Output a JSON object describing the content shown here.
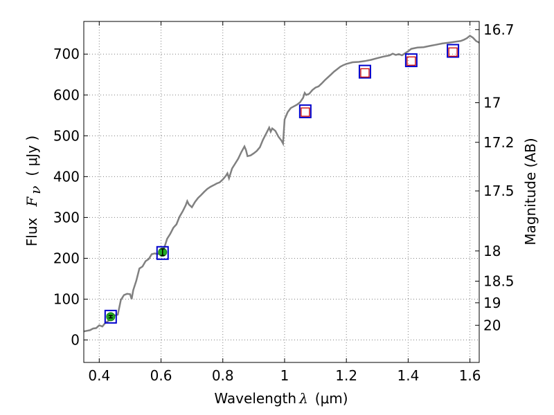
{
  "chart_data": {
    "type": "scatter",
    "xlabel": "Wavelength",
    "xlabel_symbol": "λ",
    "xlabel_unit": "(μm)",
    "ylabel": "Flux",
    "ylabel_symbol": "F",
    "ylabel_subscript": "ν",
    "ylabel_unit": "( μJy )",
    "y2label": "Magnitude (AB)",
    "xlim": [
      0.35,
      1.63
    ],
    "ylim": [
      -55,
      780
    ],
    "grid": true,
    "x_ticks": [
      0.4,
      0.6,
      0.8,
      1.0,
      1.2,
      1.4,
      1.6
    ],
    "x_tick_labels": [
      "0.4",
      "0.6",
      "0.8",
      "1",
      "1.2",
      "1.4",
      "1.6"
    ],
    "y_ticks": [
      0,
      100,
      200,
      300,
      400,
      500,
      600,
      700
    ],
    "y_tick_labels": [
      "0",
      "100",
      "200",
      "300",
      "400",
      "500",
      "600",
      "700"
    ],
    "y2_ticks": [
      {
        "label": "16.7",
        "flux": 760
      },
      {
        "label": "17",
        "flux": 581
      },
      {
        "label": "17.2",
        "flux": 484
      },
      {
        "label": "17.5",
        "flux": 365
      },
      {
        "label": "18",
        "flux": 218
      },
      {
        "label": "18.5",
        "flux": 144
      },
      {
        "label": "19",
        "flux": 91
      },
      {
        "label": "20",
        "flux": 36
      }
    ],
    "series": [
      {
        "type": "line",
        "color": "#808080",
        "points": [
          [
            0.35,
            21
          ],
          [
            0.37,
            24
          ],
          [
            0.38,
            28
          ],
          [
            0.39,
            29
          ],
          [
            0.4,
            36
          ],
          [
            0.41,
            33
          ],
          [
            0.42,
            42
          ],
          [
            0.43,
            47
          ],
          [
            0.44,
            55
          ],
          [
            0.45,
            60
          ],
          [
            0.46,
            62
          ],
          [
            0.47,
            98
          ],
          [
            0.48,
            110
          ],
          [
            0.49,
            113
          ],
          [
            0.5,
            112
          ],
          [
            0.505,
            100
          ],
          [
            0.51,
            122
          ],
          [
            0.52,
            145
          ],
          [
            0.53,
            175
          ],
          [
            0.54,
            180
          ],
          [
            0.55,
            193
          ],
          [
            0.56,
            198
          ],
          [
            0.57,
            210
          ],
          [
            0.58,
            212
          ],
          [
            0.59,
            210
          ],
          [
            0.6,
            218
          ],
          [
            0.61,
            225
          ],
          [
            0.62,
            248
          ],
          [
            0.63,
            260
          ],
          [
            0.64,
            275
          ],
          [
            0.65,
            283
          ],
          [
            0.66,
            302
          ],
          [
            0.67,
            315
          ],
          [
            0.68,
            330
          ],
          [
            0.685,
            340
          ],
          [
            0.69,
            332
          ],
          [
            0.7,
            325
          ],
          [
            0.71,
            338
          ],
          [
            0.72,
            348
          ],
          [
            0.73,
            355
          ],
          [
            0.74,
            363
          ],
          [
            0.75,
            370
          ],
          [
            0.76,
            375
          ],
          [
            0.77,
            379
          ],
          [
            0.78,
            383
          ],
          [
            0.79,
            386
          ],
          [
            0.8,
            393
          ],
          [
            0.81,
            402
          ],
          [
            0.815,
            408
          ],
          [
            0.82,
            396
          ],
          [
            0.83,
            420
          ],
          [
            0.84,
            432
          ],
          [
            0.85,
            444
          ],
          [
            0.86,
            460
          ],
          [
            0.87,
            474
          ],
          [
            0.875,
            465
          ],
          [
            0.88,
            450
          ],
          [
            0.89,
            452
          ],
          [
            0.9,
            457
          ],
          [
            0.91,
            463
          ],
          [
            0.92,
            472
          ],
          [
            0.93,
            490
          ],
          [
            0.94,
            505
          ],
          [
            0.95,
            520
          ],
          [
            0.955,
            510
          ],
          [
            0.96,
            518
          ],
          [
            0.97,
            512
          ],
          [
            0.98,
            498
          ],
          [
            0.99,
            488
          ],
          [
            0.995,
            481
          ],
          [
            1.0,
            540
          ],
          [
            1.01,
            558
          ],
          [
            1.02,
            568
          ],
          [
            1.03,
            572
          ],
          [
            1.04,
            576
          ],
          [
            1.05,
            582
          ],
          [
            1.06,
            593
          ],
          [
            1.065,
            605
          ],
          [
            1.07,
            600
          ],
          [
            1.08,
            603
          ],
          [
            1.09,
            612
          ],
          [
            1.1,
            618
          ],
          [
            1.11,
            621
          ],
          [
            1.12,
            628
          ],
          [
            1.13,
            636
          ],
          [
            1.14,
            643
          ],
          [
            1.15,
            650
          ],
          [
            1.16,
            657
          ],
          [
            1.17,
            663
          ],
          [
            1.18,
            669
          ],
          [
            1.19,
            673
          ],
          [
            1.2,
            676
          ],
          [
            1.22,
            680
          ],
          [
            1.24,
            681
          ],
          [
            1.26,
            683
          ],
          [
            1.28,
            686
          ],
          [
            1.3,
            690
          ],
          [
            1.32,
            694
          ],
          [
            1.34,
            697
          ],
          [
            1.35,
            701
          ],
          [
            1.36,
            698
          ],
          [
            1.37,
            700
          ],
          [
            1.38,
            697
          ],
          [
            1.39,
            702
          ],
          [
            1.4,
            707
          ],
          [
            1.41,
            713
          ],
          [
            1.43,
            716
          ],
          [
            1.45,
            717
          ],
          [
            1.47,
            720
          ],
          [
            1.49,
            723
          ],
          [
            1.51,
            726
          ],
          [
            1.53,
            728
          ],
          [
            1.55,
            730
          ],
          [
            1.57,
            732
          ],
          [
            1.58,
            735
          ],
          [
            1.59,
            739
          ],
          [
            1.6,
            745
          ],
          [
            1.61,
            740
          ],
          [
            1.62,
            732
          ],
          [
            1.63,
            728
          ]
        ]
      },
      {
        "type": "model_boxes",
        "color": "#0000cc",
        "points": [
          [
            0.437,
            57
          ],
          [
            0.605,
            213
          ],
          [
            1.067,
            560
          ],
          [
            1.26,
            657
          ],
          [
            1.41,
            685
          ],
          [
            1.545,
            708
          ]
        ]
      },
      {
        "type": "observed_detections",
        "color": "#22aa22",
        "points": [
          [
            0.437,
            57,
            3
          ],
          [
            0.605,
            215,
            8
          ]
        ]
      },
      {
        "type": "observed_upper",
        "color": "#cc0000",
        "points": [
          [
            1.067,
            558
          ],
          [
            1.26,
            654
          ],
          [
            1.41,
            683
          ],
          [
            1.545,
            705
          ]
        ]
      }
    ]
  }
}
